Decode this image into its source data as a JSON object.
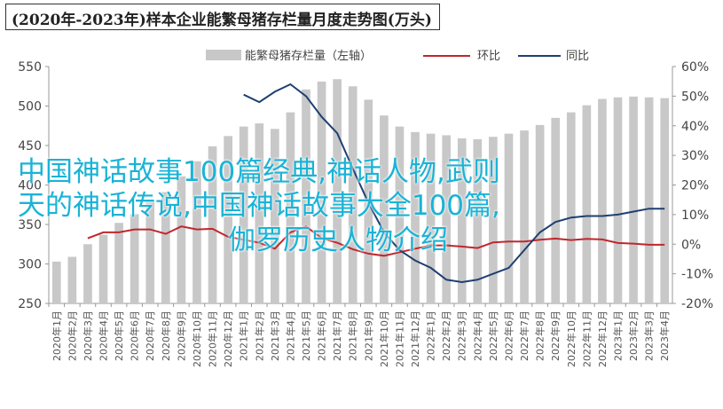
{
  "chart_data": {
    "type": "bar+line",
    "title": "(2020年-2023年)样本企业能繁母猪存栏量月度走势图(万头)",
    "categories": [
      "2020年1月",
      "2020年2月",
      "2020年3月",
      "2020年4月",
      "2020年5月",
      "2020年6月",
      "2020年7月",
      "2020年8月",
      "2020年9月",
      "2020年10月",
      "2020年11月",
      "2020年12月",
      "2021年1月",
      "2021年2月",
      "2021年3月",
      "2021年4月",
      "2021年5月",
      "2021年6月",
      "2021年7月",
      "2021年8月",
      "2021年9月",
      "2021年10月",
      "2021年11月",
      "2021年12月",
      "2022年1月",
      "2022年2月",
      "2022年3月",
      "2022年4月",
      "2022年5月",
      "2022年6月",
      "2022年7月",
      "2022年8月",
      "2022年9月",
      "2022年10月",
      "2022年11月",
      "2022年12月",
      "2023年1月",
      "2023年2月",
      "2023年3月",
      "2023年4月"
    ],
    "left_axis": {
      "min": 250,
      "max": 550,
      "ticks": [
        250,
        300,
        350,
        400,
        450,
        500,
        550
      ]
    },
    "right_axis": {
      "min": -20,
      "max": 60,
      "ticks": [
        "-20%",
        "-10%",
        "0%",
        "10%",
        "20%",
        "30%",
        "40%",
        "50%",
        "60%"
      ]
    },
    "legend_position": "top",
    "series": [
      {
        "name": "能繁母猪存栏量（左轴）",
        "kind": "bar",
        "axis": "left",
        "color": "#c8c8c8",
        "values": [
          303,
          309,
          325,
          337,
          352,
          363,
          380,
          391,
          411,
          430,
          449,
          462,
          474,
          478,
          471,
          492,
          521,
          531,
          534,
          525,
          508,
          488,
          474,
          467,
          465,
          463,
          459,
          458,
          461,
          465,
          469,
          476,
          485,
          492,
          501,
          509,
          511,
          512,
          511,
          510
        ]
      },
      {
        "name": "环比",
        "kind": "line",
        "axis": "right",
        "color": "#c0272d",
        "values": [
          null,
          null,
          2,
          4,
          4,
          5,
          5,
          3.5,
          6,
          5,
          5.2,
          2.5,
          1.5,
          0.5,
          -1.5,
          4,
          6,
          2,
          0.5,
          -1.7,
          -3.2,
          -3.9,
          -2.7,
          -1.5,
          -0.4,
          -0.4,
          -0.8,
          -1.3,
          0.6,
          0.9,
          0.9,
          1.5,
          1.9,
          1.4,
          1.8,
          1.6,
          0.4,
          0.2,
          -0.2,
          -0.2
        ]
      },
      {
        "name": "同比",
        "kind": "line",
        "axis": "right",
        "color": "#1f3f72",
        "values": [
          null,
          null,
          null,
          null,
          null,
          null,
          null,
          null,
          null,
          null,
          null,
          null,
          null,
          null,
          null,
          null,
          null,
          null,
          null,
          null,
          null,
          null,
          null,
          null,
          null,
          null,
          null,
          null,
          null,
          null,
          null,
          null,
          null,
          null,
          null,
          null,
          null,
          null,
          null,
          null
        ]
      }
    ],
    "yoy_points": {
      "indices": [
        12,
        13,
        14,
        15,
        16,
        17,
        18,
        19,
        20,
        21,
        22,
        23,
        24,
        25,
        26,
        27,
        28,
        29,
        30,
        31,
        32,
        33,
        34,
        35,
        36,
        37,
        38,
        39
      ],
      "values": [
        50.5,
        48,
        51.5,
        54,
        50,
        43,
        37.5,
        25.5,
        14,
        4,
        -2,
        -5.5,
        -8,
        -12,
        -12.8,
        -12,
        -10,
        -8,
        -2,
        4,
        7.5,
        9,
        9.5,
        9.5,
        10,
        11,
        12,
        12
      ]
    }
  },
  "overlay": {
    "line1": "中国神话故事100篇经典,神话人物,武则",
    "line2": "天的神话传说,中国神话故事大全100篇,",
    "line3": "伽罗历史人物介绍"
  }
}
